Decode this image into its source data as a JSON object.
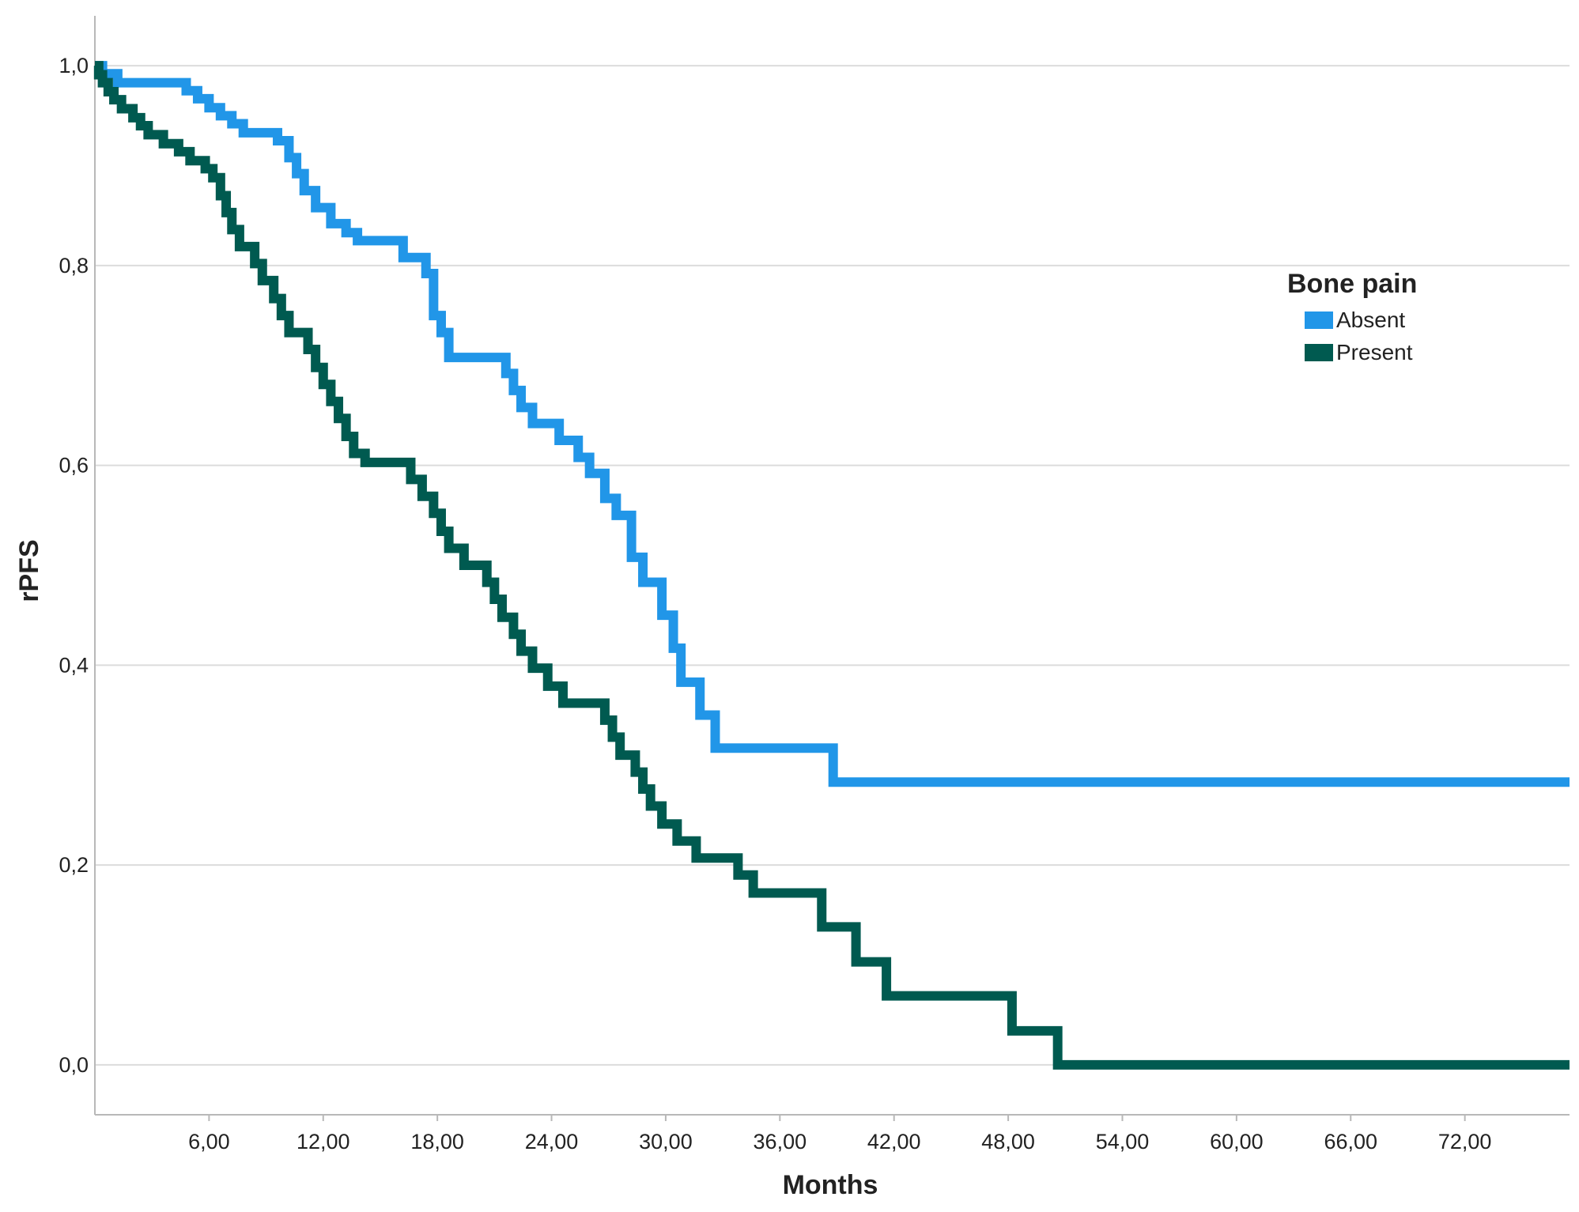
{
  "chart_data": {
    "type": "line",
    "title": "",
    "xlabel": "Months",
    "ylabel": "rPFS",
    "xlim": [
      0,
      77.5
    ],
    "ylim": [
      -0.05,
      1.05
    ],
    "x_ticks": [
      6,
      12,
      18,
      24,
      30,
      36,
      42,
      48,
      54,
      60,
      66,
      72
    ],
    "x_tick_labels": [
      "6,00",
      "12,00",
      "18,00",
      "24,00",
      "30,00",
      "36,00",
      "42,00",
      "48,00",
      "54,00",
      "60,00",
      "66,00",
      "72,00"
    ],
    "y_ticks": [
      0,
      0.2,
      0.4,
      0.6,
      0.8,
      1.0
    ],
    "y_tick_labels": [
      "0,0",
      "0,2",
      "0,4",
      "0,6",
      "0,8",
      "1,0"
    ],
    "grid": "horizontal",
    "legend": {
      "title": "Bone pain",
      "placement": "right"
    },
    "series": [
      {
        "name": "Absent",
        "color": "#2196e8",
        "step": true,
        "x": [
          0,
          0.4,
          1.2,
          4.8,
          5.4,
          6.0,
          6.6,
          7.2,
          7.8,
          9.6,
          10.2,
          10.6,
          11.0,
          11.6,
          12.4,
          13.2,
          13.8,
          16.2,
          17.4,
          17.8,
          18.2,
          18.6,
          21.6,
          22.0,
          22.4,
          23.0,
          24.4,
          25.4,
          26.0,
          26.8,
          27.4,
          28.2,
          28.8,
          29.8,
          30.4,
          30.8,
          31.8,
          32.6,
          38.8,
          77.5
        ],
        "y": [
          1.0,
          0.992,
          0.983,
          0.975,
          0.967,
          0.958,
          0.95,
          0.942,
          0.933,
          0.925,
          0.908,
          0.892,
          0.875,
          0.858,
          0.842,
          0.833,
          0.825,
          0.808,
          0.792,
          0.75,
          0.733,
          0.708,
          0.692,
          0.675,
          0.658,
          0.642,
          0.625,
          0.608,
          0.592,
          0.567,
          0.55,
          0.508,
          0.483,
          0.45,
          0.417,
          0.383,
          0.35,
          0.317,
          0.283,
          0.283
        ]
      },
      {
        "name": "Present",
        "color": "#005a50",
        "step": true,
        "x": [
          0,
          0.2,
          0.4,
          0.7,
          1.0,
          1.4,
          2.0,
          2.4,
          2.8,
          3.6,
          4.4,
          5.0,
          5.8,
          6.2,
          6.6,
          6.9,
          7.2,
          7.6,
          8.4,
          8.8,
          9.4,
          9.8,
          10.2,
          11.2,
          11.6,
          12.0,
          12.4,
          12.8,
          13.2,
          13.6,
          14.2,
          16.6,
          17.2,
          17.8,
          18.2,
          18.6,
          19.4,
          20.6,
          21.0,
          21.4,
          22.0,
          22.4,
          23.0,
          23.8,
          24.6,
          26.8,
          27.2,
          27.6,
          28.4,
          28.8,
          29.2,
          29.8,
          30.6,
          31.6,
          33.8,
          34.6,
          38.2,
          40.0,
          41.6,
          48.2,
          50.6,
          55.2,
          74.0,
          77.5
        ],
        "y": [
          1.0,
          0.991,
          0.983,
          0.974,
          0.966,
          0.957,
          0.948,
          0.94,
          0.931,
          0.922,
          0.914,
          0.905,
          0.897,
          0.888,
          0.87,
          0.853,
          0.836,
          0.819,
          0.802,
          0.785,
          0.767,
          0.75,
          0.733,
          0.716,
          0.698,
          0.681,
          0.664,
          0.647,
          0.629,
          0.612,
          0.603,
          0.586,
          0.569,
          0.552,
          0.534,
          0.517,
          0.5,
          0.483,
          0.466,
          0.448,
          0.431,
          0.414,
          0.397,
          0.379,
          0.362,
          0.345,
          0.328,
          0.31,
          0.293,
          0.276,
          0.259,
          0.241,
          0.224,
          0.207,
          0.19,
          0.172,
          0.138,
          0.103,
          0.069,
          0.034,
          0.0,
          0.0,
          0.0,
          0.0
        ]
      }
    ]
  }
}
